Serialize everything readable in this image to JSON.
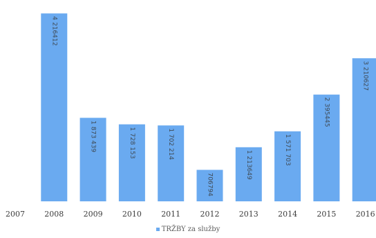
{
  "chart_data": {
    "type": "bar",
    "categories": [
      "2007",
      "2008",
      "2009",
      "2010",
      "2011",
      "2012",
      "2013",
      "2014",
      "2015",
      "2016"
    ],
    "series": [
      {
        "name": "TRŽBY za služby",
        "values": [
          0,
          4216412,
          1873439,
          1728153,
          1702214,
          706794,
          1213649,
          1571703,
          2395445,
          3210627
        ],
        "labels": [
          "",
          "4 216412",
          "1 873 439",
          "1 728 153",
          "1 702 214",
          "706794",
          "1 213649",
          "1 571 703",
          "2 395445",
          "3 210627"
        ]
      }
    ],
    "ylim": [
      0,
      4300000
    ],
    "grid": false,
    "legend_position": "bottom"
  },
  "colors": {
    "bar": "#6aaaf0",
    "label": "#3f4a55",
    "tick": "#3a3a3a"
  }
}
